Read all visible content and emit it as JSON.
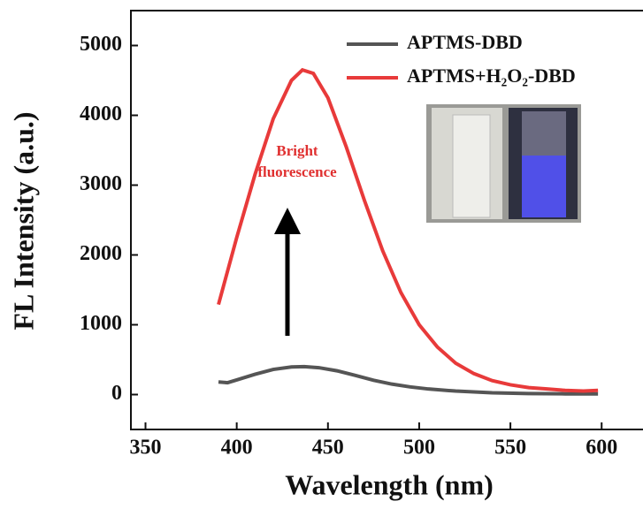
{
  "chart_data": {
    "type": "line",
    "x_label": "Wavelength (nm)",
    "y_label": "FL Intensity (a.u.)",
    "annotation": [
      "Bright",
      "fluorescence"
    ],
    "xlim": [
      342,
      628
    ],
    "xticks": [
      350,
      400,
      450,
      500,
      550,
      600
    ],
    "ylim": [
      -500,
      5500
    ],
    "yticks": [
      0,
      1000,
      2000,
      3000,
      4000,
      5000
    ],
    "series": [
      {
        "name": "APTMS-DBD",
        "color": "#555555",
        "x": [
          390,
          395,
          400,
          410,
          420,
          430,
          437,
          445,
          455,
          465,
          475,
          485,
          495,
          505,
          520,
          540,
          560,
          580,
          598
        ],
        "values": [
          180,
          170,
          210,
          290,
          360,
          395,
          400,
          385,
          340,
          275,
          205,
          150,
          110,
          80,
          50,
          25,
          15,
          10,
          10
        ]
      },
      {
        "name": "APTMS+H₂O₂-DBD",
        "color": "#e83a3a",
        "x": [
          390,
          400,
          410,
          420,
          430,
          436,
          442,
          450,
          460,
          470,
          480,
          490,
          500,
          510,
          520,
          530,
          540,
          550,
          560,
          570,
          580,
          590,
          598
        ],
        "values": [
          1290,
          2250,
          3150,
          3950,
          4500,
          4650,
          4600,
          4250,
          3550,
          2780,
          2060,
          1460,
          1000,
          680,
          450,
          300,
          200,
          140,
          100,
          80,
          60,
          50,
          60
        ]
      }
    ]
  }
}
